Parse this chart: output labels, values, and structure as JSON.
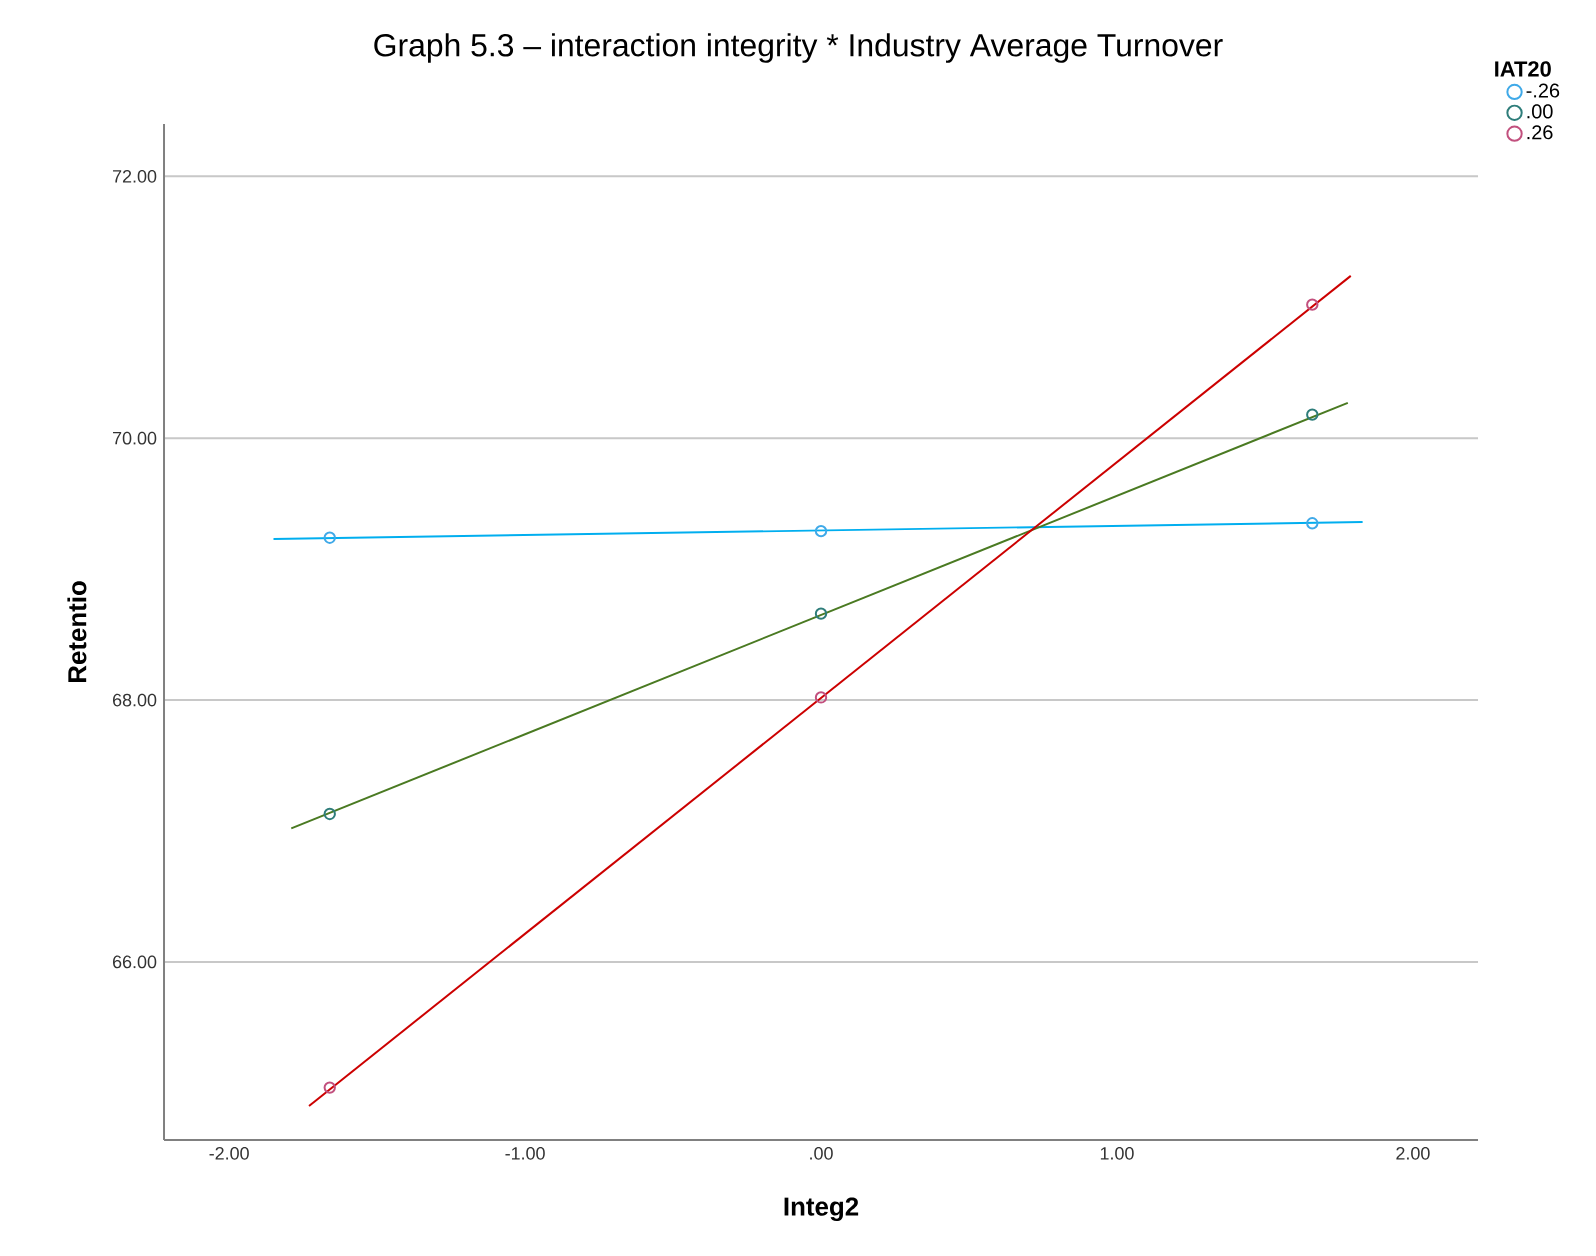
{
  "chart_data": {
    "type": "scatter",
    "title": "Graph 5.3 – interaction integrity * Industry Average Turnover",
    "xlabel": "Integ2",
    "ylabel": "Retentio",
    "legend_title": "IAT20",
    "legend": "top right",
    "grid": "y",
    "marker": "circle",
    "xlim": [
      -2.22,
      2.22
    ],
    "ylim": [
      64.64,
      72.4
    ],
    "xticks": [
      {
        "value": -2,
        "label": "-2.00"
      },
      {
        "value": -1,
        "label": "-1.00"
      },
      {
        "value": 0,
        "label": ".00"
      },
      {
        "value": 1,
        "label": "1.00"
      },
      {
        "value": 2,
        "label": "2.00"
      }
    ],
    "yticks": [
      {
        "value": 66,
        "label": "66.00"
      },
      {
        "value": 68,
        "label": "68.00"
      },
      {
        "value": 70,
        "label": "70.00"
      },
      {
        "value": 72,
        "label": "72.00"
      }
    ],
    "series": [
      {
        "name": "-.26",
        "color": "#3fa9e8",
        "x": [
          -1.66,
          0,
          1.66
        ],
        "values": [
          69.24,
          69.29,
          69.35
        ]
      },
      {
        "name": ".00",
        "color": "#2e7d7a",
        "x": [
          -1.66,
          0,
          1.66
        ],
        "values": [
          67.13,
          68.66,
          70.18
        ]
      },
      {
        "name": ".26",
        "color": "#c2507e",
        "x": [
          -1.66,
          0,
          1.66
        ],
        "values": [
          65.04,
          68.02,
          71.02
        ]
      },
      {
        "type": "line",
        "marker": "none",
        "color": "#00aeef",
        "x": [
          -1.85,
          1.83
        ],
        "values": [
          69.23,
          69.36
        ]
      },
      {
        "type": "line",
        "marker": "none",
        "color": "#4a7a22",
        "x": [
          -1.79,
          1.78
        ],
        "values": [
          67.02,
          70.27
        ]
      },
      {
        "type": "line",
        "marker": "none",
        "color": "#cc0000",
        "x": [
          -1.73,
          1.79
        ],
        "values": [
          64.9,
          71.24
        ]
      }
    ]
  }
}
